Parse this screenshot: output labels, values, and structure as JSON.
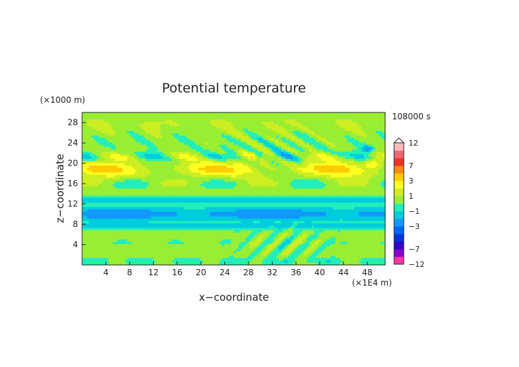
{
  "chart_data": {
    "type": "heatmap",
    "title": "Potential temperature",
    "xlabel": "x−coordinate",
    "ylabel": "z−coordinate",
    "x_unit": "(×1E4 m)",
    "y_unit": "(×1000 m)",
    "time_label": "108000 s",
    "xlim": [
      0,
      51
    ],
    "ylim": [
      0,
      30
    ],
    "x_ticks": [
      4,
      8,
      12,
      16,
      20,
      24,
      28,
      32,
      36,
      40,
      44,
      48
    ],
    "y_ticks": [
      4,
      8,
      12,
      16,
      20,
      24,
      28
    ],
    "colorbar": {
      "labels": [
        "12",
        "7",
        "3",
        "1",
        "−1",
        "−3",
        "−7",
        "−12"
      ],
      "levels": [
        -12,
        -9,
        -7,
        -5,
        -4,
        -3,
        -2,
        -1,
        0,
        1,
        2,
        3,
        5,
        7,
        9,
        12
      ],
      "colors": [
        "#ff33aa",
        "#8800cc",
        "#3300cc",
        "#0033dd",
        "#0066ff",
        "#1199ff",
        "#00ccdd",
        "#22eebb",
        "#99ee33",
        "#ccee22",
        "#ffff22",
        "#ffcc00",
        "#ff8811",
        "#ee3322",
        "#ee6677",
        "#ffbbbb"
      ],
      "legend_placement": "right"
    },
    "grid": false
  }
}
